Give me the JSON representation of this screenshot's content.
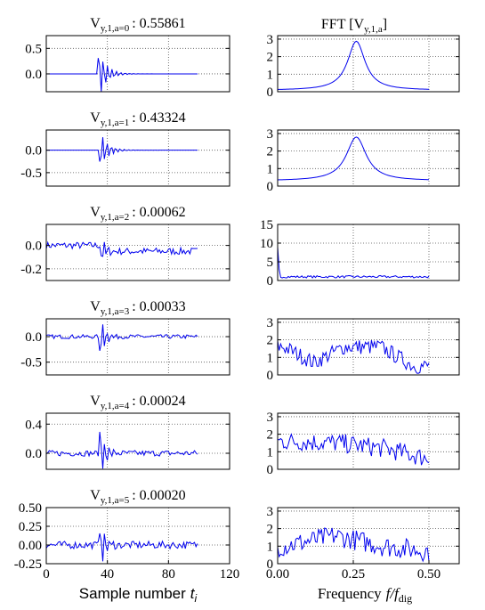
{
  "figure": {
    "left_column_xlabel": "Sample number",
    "left_column_xlabel_var": "t",
    "left_column_xlabel_sub": "i",
    "right_column_xlabel": "Frequency",
    "right_column_xlabel_var": "f/f",
    "right_column_xlabel_sub": "dig",
    "right_column_title_prefix": "FFT [",
    "right_column_title_sym": "V",
    "right_column_title_sub": "y,1,a",
    "right_column_title_suffix": "]"
  },
  "colors": {
    "line": "#0000ee",
    "axes": "#000000",
    "grid": "#555555"
  },
  "chart_data": [
    {
      "type": "line",
      "panel": "signal",
      "title_symbol": "V",
      "title_subscript": "y,1,a=0",
      "title_value": ": 0.55861",
      "xlim": [
        0,
        120
      ],
      "ylim": [
        -0.35,
        0.75
      ],
      "yticks": [
        "0.5",
        "0.0"
      ],
      "ytick_values": [
        0.5,
        0.0
      ],
      "xticks": [],
      "grid": true,
      "n": 100,
      "onset": 34,
      "decay": 5,
      "amp": 0.55,
      "sign": 1,
      "noise": 0.0,
      "vgrid": [
        40,
        80
      ]
    },
    {
      "type": "line",
      "panel": "fft",
      "xlim": [
        0,
        0.6
      ],
      "ylim": [
        0,
        3.2
      ],
      "yticks": [
        "3",
        "2",
        "1",
        "0"
      ],
      "ytick_values": [
        3,
        2,
        1,
        0
      ],
      "xticks": [],
      "grid": true,
      "peak": 0.26,
      "peak_height": 2.8,
      "width": 0.035,
      "base": 0.08,
      "noise": 0.0,
      "vgrid": [
        0.25,
        0.5
      ]
    },
    {
      "type": "line",
      "panel": "signal",
      "title_symbol": "V",
      "title_subscript": "y,1,a=1",
      "title_value": ": 0.43324",
      "xlim": [
        0,
        120
      ],
      "ylim": [
        -0.8,
        0.45
      ],
      "yticks": [
        "0.0",
        "-0.5"
      ],
      "ytick_values": [
        0.0,
        -0.5
      ],
      "xticks": [],
      "grid": true,
      "n": 100,
      "onset": 35,
      "decay": 5,
      "amp": 0.45,
      "sign": -1,
      "noise": 0.0,
      "vgrid": [
        40,
        80
      ]
    },
    {
      "type": "line",
      "panel": "fft",
      "xlim": [
        0,
        0.6
      ],
      "ylim": [
        0,
        3.2
      ],
      "yticks": [
        "3",
        "2",
        "1",
        "0"
      ],
      "ytick_values": [
        3,
        2,
        1,
        0
      ],
      "xticks": [],
      "grid": true,
      "peak": 0.26,
      "peak_height": 2.5,
      "width": 0.04,
      "base": 0.3,
      "noise": 0.0,
      "vgrid": [
        0.25,
        0.5
      ]
    },
    {
      "type": "line",
      "panel": "signal",
      "title_symbol": "V",
      "title_subscript": "y,1,a=2",
      "title_value": ": 0.00062",
      "xlim": [
        0,
        120
      ],
      "ylim": [
        -0.3,
        0.18
      ],
      "yticks": [
        "0.0",
        "-0.2"
      ],
      "ytick_values": [
        0.0,
        -0.2
      ],
      "xticks": [],
      "grid": true,
      "n": 100,
      "onset": 36,
      "decay": 2,
      "amp": 0.15,
      "sign": -1,
      "noise": 0.03,
      "trend": -0.05,
      "vgrid": [
        40,
        80
      ]
    },
    {
      "type": "line",
      "panel": "fft",
      "xlim": [
        0,
        0.6
      ],
      "ylim": [
        0,
        15
      ],
      "yticks": [
        "15",
        "10",
        "5",
        "0"
      ],
      "ytick_values": [
        15,
        10,
        5,
        0
      ],
      "xticks": [],
      "grid": true,
      "spike": 9,
      "base": 1.0,
      "noise": 0.3,
      "vgrid": [
        0.25,
        0.5
      ]
    },
    {
      "type": "line",
      "panel": "signal",
      "title_symbol": "V",
      "title_subscript": "y,1,a=3",
      "title_value": ": 0.00033",
      "xlim": [
        0,
        120
      ],
      "ylim": [
        -0.75,
        0.35
      ],
      "yticks": [
        "0.0",
        "-0.5"
      ],
      "ytick_values": [
        0.0,
        -0.5
      ],
      "xticks": [],
      "grid": true,
      "n": 100,
      "onset": 35,
      "decay": 3,
      "amp": 0.55,
      "sign": -1,
      "noise": 0.04,
      "vgrid": [
        40,
        80
      ]
    },
    {
      "type": "line",
      "panel": "fft",
      "xlim": [
        0,
        0.6
      ],
      "ylim": [
        0,
        3.2
      ],
      "yticks": [
        "3",
        "2",
        "1",
        "0"
      ],
      "ytick_values": [
        3,
        2,
        1,
        0
      ],
      "xticks": [],
      "grid": true,
      "hump": [
        [
          0.02,
          1.6
        ],
        [
          0.12,
          0.7
        ],
        [
          0.22,
          1.6
        ],
        [
          0.34,
          1.6
        ],
        [
          0.45,
          0.5
        ],
        [
          0.5,
          0.5
        ]
      ],
      "noise": 0.45,
      "vgrid": [
        0.25,
        0.5
      ]
    },
    {
      "type": "line",
      "panel": "signal",
      "title_symbol": "V",
      "title_subscript": "y,1,a=4",
      "title_value": ": 0.00024",
      "xlim": [
        0,
        120
      ],
      "ylim": [
        -0.22,
        0.55
      ],
      "yticks": [
        "0.4",
        "0.0"
      ],
      "ytick_values": [
        0.4,
        0.0
      ],
      "xticks": [],
      "grid": true,
      "n": 100,
      "onset": 35,
      "decay": 3,
      "amp": 0.45,
      "sign": 1,
      "noise": 0.04,
      "vgrid": [
        40,
        80
      ]
    },
    {
      "type": "line",
      "panel": "fft",
      "xlim": [
        0,
        0.6
      ],
      "ylim": [
        0,
        3.2
      ],
      "yticks": [
        "3",
        "2",
        "1",
        "0"
      ],
      "ytick_values": [
        3,
        2,
        1,
        0
      ],
      "xticks": [],
      "grid": true,
      "hump": [
        [
          0.02,
          1.6
        ],
        [
          0.2,
          1.5
        ],
        [
          0.35,
          1.2
        ],
        [
          0.5,
          0.6
        ]
      ],
      "noise": 0.55,
      "vgrid": [
        0.25,
        0.5
      ]
    },
    {
      "type": "line",
      "panel": "signal",
      "title_symbol": "V",
      "title_subscript": "y,1,a=5",
      "title_value": ": 0.00020",
      "xlim": [
        0,
        120
      ],
      "ylim": [
        -0.25,
        0.5
      ],
      "yticks": [
        "0.50",
        "0.25",
        "0.00",
        "-0.25"
      ],
      "ytick_values": [
        0.5,
        0.25,
        0.0,
        -0.25
      ],
      "xticks": [
        "0",
        "40",
        "80",
        "120"
      ],
      "xtick_values": [
        0,
        40,
        80,
        120
      ],
      "grid": true,
      "n": 100,
      "onset": 35,
      "decay": 3,
      "amp": 0.35,
      "sign": 1,
      "noise": 0.05,
      "vgrid": [
        40,
        80
      ]
    },
    {
      "type": "line",
      "panel": "fft",
      "xlim": [
        0,
        0.6
      ],
      "ylim": [
        0,
        3.2
      ],
      "yticks": [
        "3",
        "2",
        "1",
        "0"
      ],
      "ytick_values": [
        3,
        2,
        1,
        0
      ],
      "xticks": [
        "0.00",
        "0.25",
        "0.50"
      ],
      "xtick_values": [
        0,
        0.25,
        0.5
      ],
      "grid": true,
      "hump": [
        [
          0.02,
          1.0
        ],
        [
          0.19,
          1.6
        ],
        [
          0.35,
          1.0
        ],
        [
          0.5,
          0.7
        ]
      ],
      "noise": 0.6,
      "vgrid": [
        0.25,
        0.5
      ]
    }
  ]
}
